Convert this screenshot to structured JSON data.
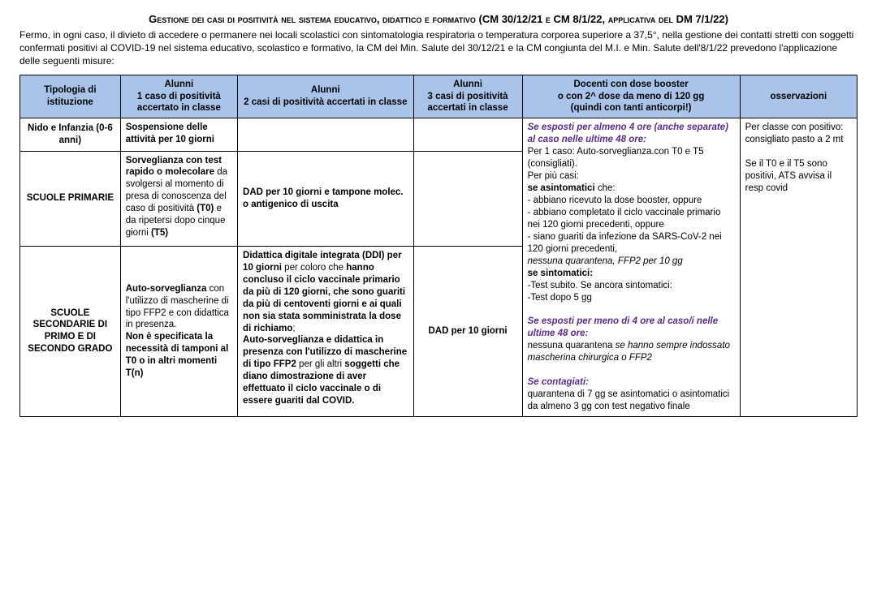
{
  "title": "Gestione dei casi di positività nel sistema educativo, didattico e formativo (CM 30/12/21 e CM 8/1/22, applicativa del DM 7/1/22)",
  "intro": "Fermo, in ogni caso, il divieto di accedere o permanere nei locali scolastici con sintomatologia respiratoria o temperatura corporea superiore a 37,5°, nella gestione dei contatti stretti con soggetti confermati positivi al COVID-19 nel sistema educativo, scolastico e formativo, la CM del Min. Salute del 30/12/21 e la CM congiunta del M.I. e Min. Salute dell'8/1/22 prevedono l'applicazione delle seguenti misure:",
  "headers": {
    "tipo": "Tipologia di istituzione",
    "c1": "Alunni\n1 caso di positività accertato in classe",
    "c2": "Alunni\n2 casi di positività accertati in classe",
    "c3": "Alunni\n3 casi di positività accertati in classe",
    "doc": "Docenti con dose booster\no con 2^ dose da meno di 120 gg\n(quindi con tanti anticorpi!)",
    "oss": "osservazioni"
  },
  "rows": {
    "r1_label": "Nido e Infanzia (0-6 anni)",
    "r1_c1_a": "Sospensione delle attività per 10 giorni",
    "r2_label": "SCUOLE PRIMARIE",
    "r2_c1_a": "Sorveglianza con test rapido o molecolare",
    "r2_c1_b": " da svolgersi al momento di presa di conoscenza del caso di positività ",
    "r2_c1_c": "(T0)",
    "r2_c1_d": " e da ripetersi dopo cinque giorni ",
    "r2_c1_e": "(T5)",
    "r2_c2": "DAD per 10 giorni e tampone molec. o antigenico di uscita",
    "r3_label": "SCUOLE SECONDARIE DI PRIMO E DI SECONDO GRADO",
    "r3_c1_a": "Auto-sorveglianza",
    "r3_c1_b": " con l'utilizzo di mascherine di tipo FFP2 e con didattica in presenza.",
    "r3_c1_c": "Non è specificata la necessità di tamponi al T0 o in altri momenti T(n)",
    "r3_c2_a": "Didattica digitale integrata (DDI) per 10 giorni",
    "r3_c2_b": " per coloro che ",
    "r3_c2_c": "hanno concluso il ciclo vaccinale primario da più di 120 giorni, che sono guariti da più di centoventi giorni e ai quali non sia stata somministrata la dose di richiamo",
    "r3_c2_d": ";",
    "r3_c2_e": "Auto-sorveglianza e didattica in presenza con l'utilizzo di mascherine di tipo FFP2",
    "r3_c2_f": " per gli altri ",
    "r3_c2_g": "soggetti che diano dimostrazione di aver effettuato il ciclo vaccinale o di essere guariti dal COVID.",
    "r3_c3": "DAD per 10 giorni",
    "doc_a": "Se esposti per almeno 4 ore (anche separate) al caso nelle ultime 48 ore:",
    "doc_b": "Per 1 caso: Auto-sorveglianza.con T0 e T5 (consigliati).",
    "doc_c": "Per più casi:",
    "doc_d": "se asintomatici",
    "doc_d2": " che:",
    "doc_e": "- abbiano ricevuto la dose booster, oppure",
    "doc_f": "- abbiano completato il ciclo vaccinale primario nei 120 giorni precedenti, oppure",
    "doc_g": "- siano guariti da infezione da SARS-CoV-2 nei 120 giorni precedenti,",
    "doc_h": "nessuna quarantena, FFP2 per 10 gg",
    "doc_i": "se sintomatici:",
    "doc_j": "-Test subito. Se ancora sintomatici:",
    "doc_k": "-Test dopo 5 gg",
    "doc_l": "Se esposti per meno di 4 ore al caso/i nelle ultime 48 ore:",
    "doc_m": "nessuna quarantena ",
    "doc_m2": "se hanno sempre indossato mascherina chirurgica o FFP2",
    "doc_n": "Se contagiati:",
    "doc_o": "quarantena di 7 gg se asintomatici o asintomatici da almeno 3 gg con test negativo finale",
    "oss_a": "Per classe con positivo: consigliato pasto a 2 mt",
    "oss_b": "Se il T0 e il T5 sono positivi, ATS avvisa il resp covid"
  }
}
